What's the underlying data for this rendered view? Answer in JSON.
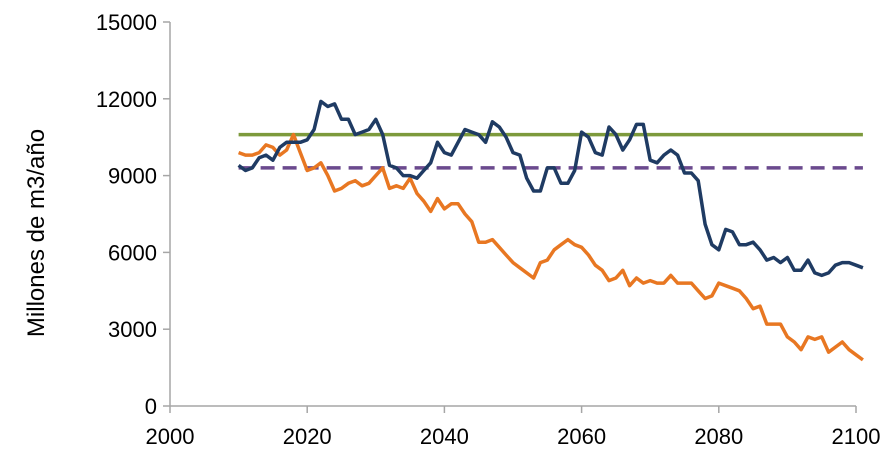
{
  "chart_data": {
    "type": "line",
    "ylabel": "Millones de m3/año",
    "xlabel": "",
    "title": "",
    "xlim": [
      2000,
      2100
    ],
    "ylim": [
      0,
      15000
    ],
    "xticks": [
      2000,
      2020,
      2040,
      2060,
      2080,
      2100
    ],
    "yticks": [
      0,
      3000,
      6000,
      9000,
      12000,
      15000
    ],
    "grid": false,
    "legend": "none",
    "series": [
      {
        "color": "#1f3b63",
        "style": "solid",
        "x": [
          2010,
          2011,
          2012,
          2013,
          2014,
          2015,
          2016,
          2017,
          2018,
          2019,
          2020,
          2021,
          2022,
          2023,
          2024,
          2025,
          2026,
          2027,
          2028,
          2029,
          2030,
          2031,
          2032,
          2033,
          2034,
          2035,
          2036,
          2037,
          2038,
          2039,
          2040,
          2041,
          2042,
          2043,
          2044,
          2045,
          2046,
          2047,
          2048,
          2049,
          2050,
          2051,
          2052,
          2053,
          2054,
          2055,
          2056,
          2057,
          2058,
          2059,
          2060,
          2061,
          2062,
          2063,
          2064,
          2065,
          2066,
          2067,
          2068,
          2069,
          2070,
          2071,
          2072,
          2073,
          2074,
          2075,
          2076,
          2077,
          2078,
          2079,
          2080,
          2081,
          2082,
          2083,
          2084,
          2085,
          2086,
          2087,
          2088,
          2089,
          2090,
          2091,
          2092,
          2093,
          2094,
          2095,
          2096,
          2097,
          2098,
          2099,
          2100,
          2101
        ],
        "y": [
          9400,
          9200,
          9300,
          9700,
          9800,
          9600,
          10100,
          10300,
          10300,
          10300,
          10400,
          10800,
          11900,
          11700,
          11800,
          11200,
          11200,
          10600,
          10700,
          10800,
          11200,
          10600,
          9400,
          9300,
          9000,
          9000,
          8900,
          9200,
          9500,
          10300,
          9900,
          9800,
          10300,
          10800,
          10700,
          10600,
          10300,
          11100,
          10900,
          10500,
          9900,
          9800,
          8900,
          8400,
          8400,
          9300,
          9300,
          8700,
          8700,
          9200,
          10700,
          10500,
          9900,
          9800,
          10900,
          10600,
          10000,
          10400,
          11000,
          11000,
          9600,
          9500,
          9800,
          10000,
          9800,
          9100,
          9100,
          8800,
          7100,
          6300,
          6100,
          6900,
          6800,
          6300,
          6300,
          6400,
          6100,
          5700,
          5800,
          5600,
          5800,
          5300,
          5300,
          5700,
          5200,
          5100,
          5200,
          5500,
          5600,
          5600,
          5500,
          5400
        ]
      },
      {
        "color": "#e87722",
        "style": "solid",
        "x": [
          2010,
          2011,
          2012,
          2013,
          2014,
          2015,
          2016,
          2017,
          2018,
          2019,
          2020,
          2021,
          2022,
          2023,
          2024,
          2025,
          2026,
          2027,
          2028,
          2029,
          2030,
          2031,
          2032,
          2033,
          2034,
          2035,
          2036,
          2037,
          2038,
          2039,
          2040,
          2041,
          2042,
          2043,
          2044,
          2045,
          2046,
          2047,
          2048,
          2049,
          2050,
          2051,
          2052,
          2053,
          2054,
          2055,
          2056,
          2057,
          2058,
          2059,
          2060,
          2061,
          2062,
          2063,
          2064,
          2065,
          2066,
          2067,
          2068,
          2069,
          2070,
          2071,
          2072,
          2073,
          2074,
          2075,
          2076,
          2077,
          2078,
          2079,
          2080,
          2081,
          2082,
          2083,
          2084,
          2085,
          2086,
          2087,
          2088,
          2089,
          2090,
          2091,
          2092,
          2093,
          2094,
          2095,
          2096,
          2097,
          2098,
          2099,
          2100,
          2101
        ],
        "y": [
          9900,
          9800,
          9800,
          9900,
          10200,
          10100,
          9800,
          10000,
          10600,
          9900,
          9200,
          9300,
          9500,
          9000,
          8400,
          8500,
          8700,
          8800,
          8600,
          8700,
          9000,
          9300,
          8500,
          8600,
          8500,
          8900,
          8300,
          8000,
          7600,
          8100,
          7700,
          7900,
          7900,
          7500,
          7200,
          6400,
          6400,
          6500,
          6200,
          5900,
          5600,
          5400,
          5200,
          5000,
          5600,
          5700,
          6100,
          6300,
          6500,
          6300,
          6200,
          5900,
          5500,
          5300,
          4900,
          5000,
          5300,
          4700,
          5000,
          4800,
          4900,
          4800,
          4800,
          5100,
          4800,
          4800,
          4800,
          4500,
          4200,
          4300,
          4800,
          4700,
          4600,
          4500,
          4200,
          3800,
          3900,
          3200,
          3200,
          3200,
          2700,
          2500,
          2200,
          2700,
          2600,
          2700,
          2100,
          2300,
          2500,
          2200,
          2000,
          1800
        ]
      },
      {
        "color": "#7d9a3c",
        "style": "solid",
        "x": [
          2010,
          2101
        ],
        "y": [
          10600,
          10600
        ]
      },
      {
        "color": "#6b4a8e",
        "style": "dashed",
        "x": [
          2010,
          2101
        ],
        "y": [
          9300,
          9300
        ]
      }
    ]
  }
}
